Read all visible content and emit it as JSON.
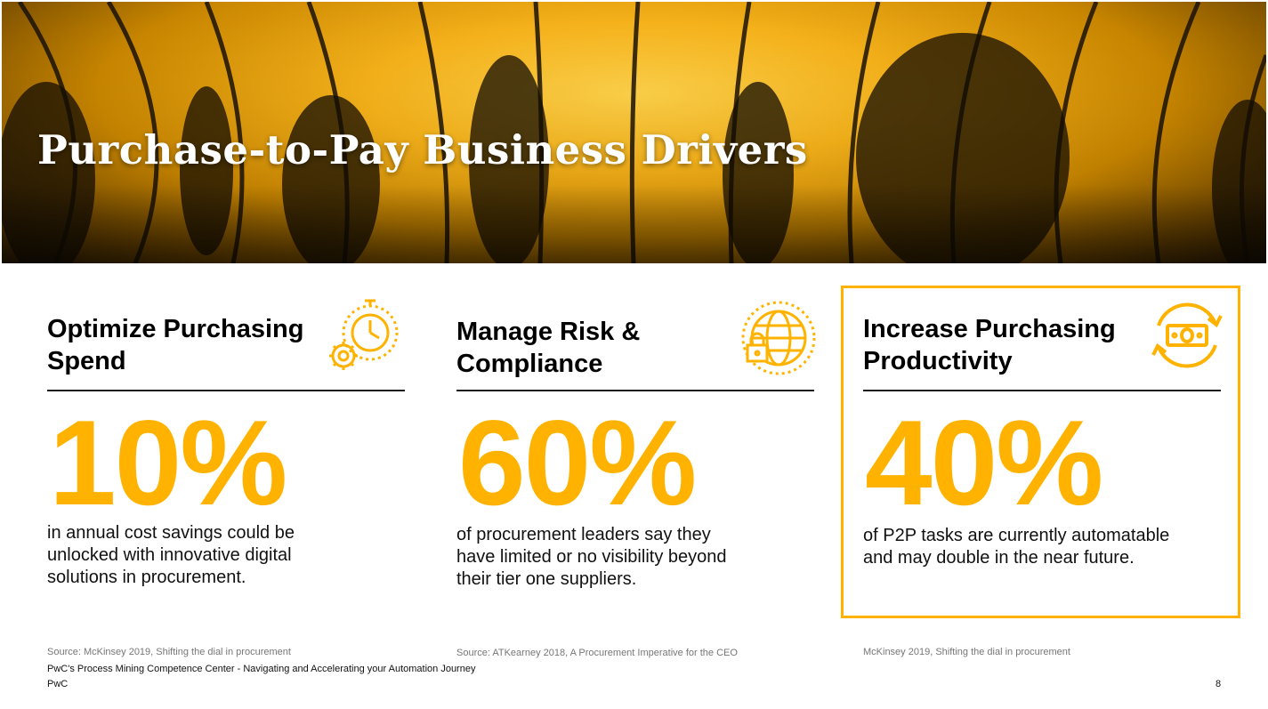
{
  "title": "Purchase-to-Pay Business Drivers",
  "accent_color": "#ffb300",
  "cards": [
    {
      "heading": "Optimize Purchasing Spend",
      "heading_line1": "Optimize Purchasing",
      "heading_line2": "Spend",
      "stat": "10%",
      "description": "in annual cost savings could be unlocked with innovative digital solutions in procurement.",
      "icon": "gear-clock-icon",
      "source": "Source: McKinsey 2019, Shifting the dial in procurement"
    },
    {
      "heading": "Manage Risk & Compliance",
      "heading_line1": "Manage Risk &",
      "heading_line2": "Compliance",
      "stat": "60%",
      "description": "of procurement leaders say they have limited or no visibility beyond their tier one suppliers.",
      "icon": "globe-lock-icon",
      "source": "Source: ATKearney 2018, A Procurement Imperative for the CEO"
    },
    {
      "heading": "Increase Purchasing Productivity",
      "heading_line1": "Increase Purchasing",
      "heading_line2": "Productivity",
      "stat": "40%",
      "description": "of P2P tasks are currently automatable and may double in the near future.",
      "icon": "money-cycle-icon",
      "source": "McKinsey 2019, Shifting the dial in procurement",
      "highlighted": true
    }
  ],
  "footer": {
    "line1": "PwC's Process Mining Competence Center - Navigating and Accelerating your Automation Journey",
    "line2": "PwC",
    "page_number": "8"
  }
}
